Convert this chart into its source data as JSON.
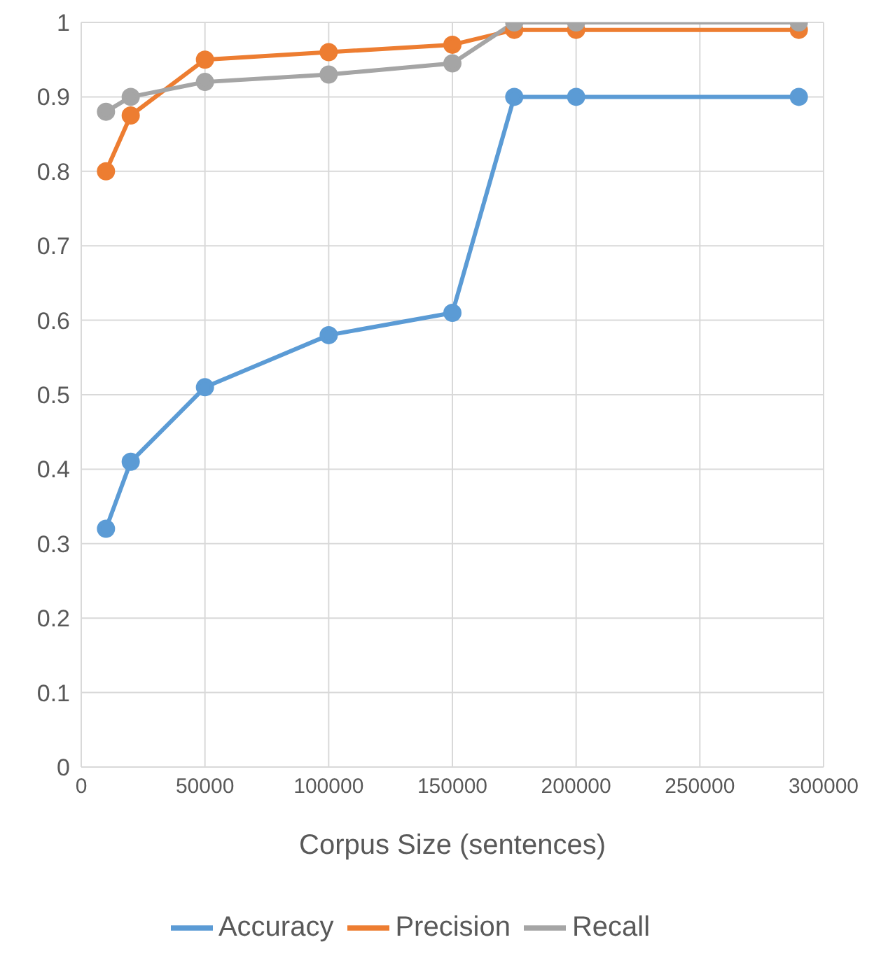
{
  "chart_data": {
    "type": "line",
    "xlabel": "Corpus Size (sentences)",
    "x": [
      10000,
      20000,
      50000,
      100000,
      150000,
      175000,
      200000,
      290000
    ],
    "series": [
      {
        "name": "Accuracy",
        "color": "#5b9bd5",
        "values": [
          0.32,
          0.41,
          0.51,
          0.58,
          0.61,
          0.9,
          0.9,
          0.9
        ]
      },
      {
        "name": "Precision",
        "color": "#ed7d31",
        "values": [
          0.8,
          0.875,
          0.95,
          0.96,
          0.97,
          0.99,
          0.99,
          0.99
        ]
      },
      {
        "name": "Recall",
        "color": "#a5a5a5",
        "values": [
          0.88,
          0.9,
          0.92,
          0.93,
          0.945,
          1,
          1,
          1
        ]
      }
    ],
    "xlim": [
      0,
      300000
    ],
    "xticks": [
      0,
      50000,
      100000,
      150000,
      200000,
      250000,
      300000
    ],
    "ylim": [
      0,
      1
    ],
    "yticks": [
      0,
      0.1,
      0.2,
      0.3,
      0.4,
      0.5,
      0.6,
      0.7,
      0.8,
      0.9,
      1
    ],
    "grid": true,
    "legend": "bottom",
    "marker": "circle",
    "line_style": "solid"
  }
}
